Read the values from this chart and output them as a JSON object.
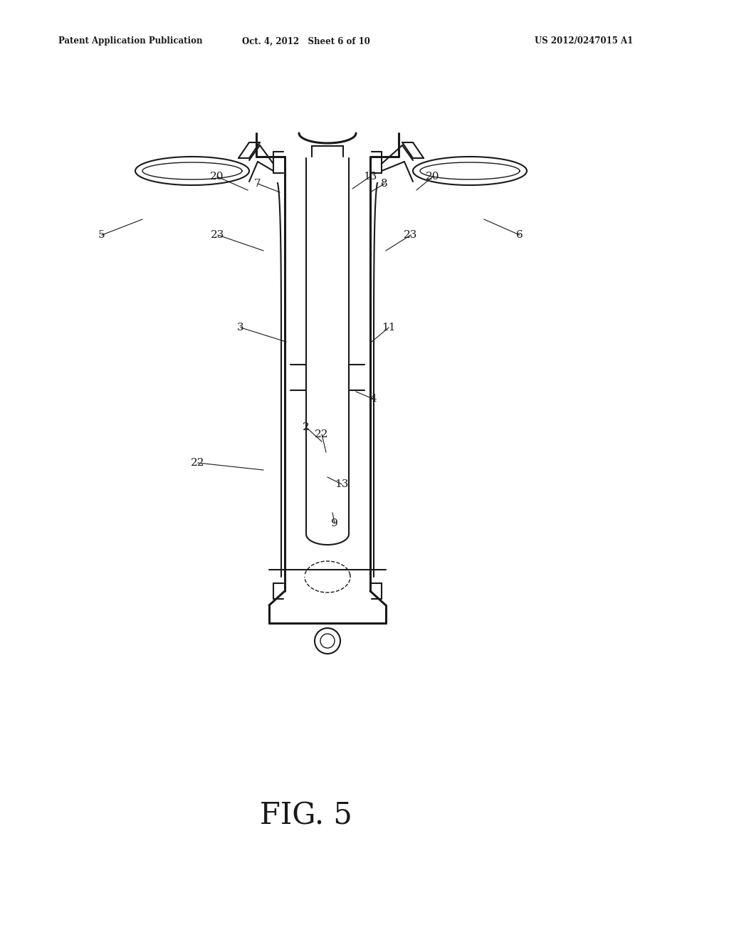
{
  "bg_color": "#ffffff",
  "line_color": "#1a1a1a",
  "fig_label": "FIG. 5",
  "header_left": "Patent Application Publication",
  "header_center": "Oct. 4, 2012   Sheet 6 of 10",
  "header_right": "US 2012/0247015 A1",
  "figsize": [
    10.24,
    13.2
  ],
  "dpi": 100
}
